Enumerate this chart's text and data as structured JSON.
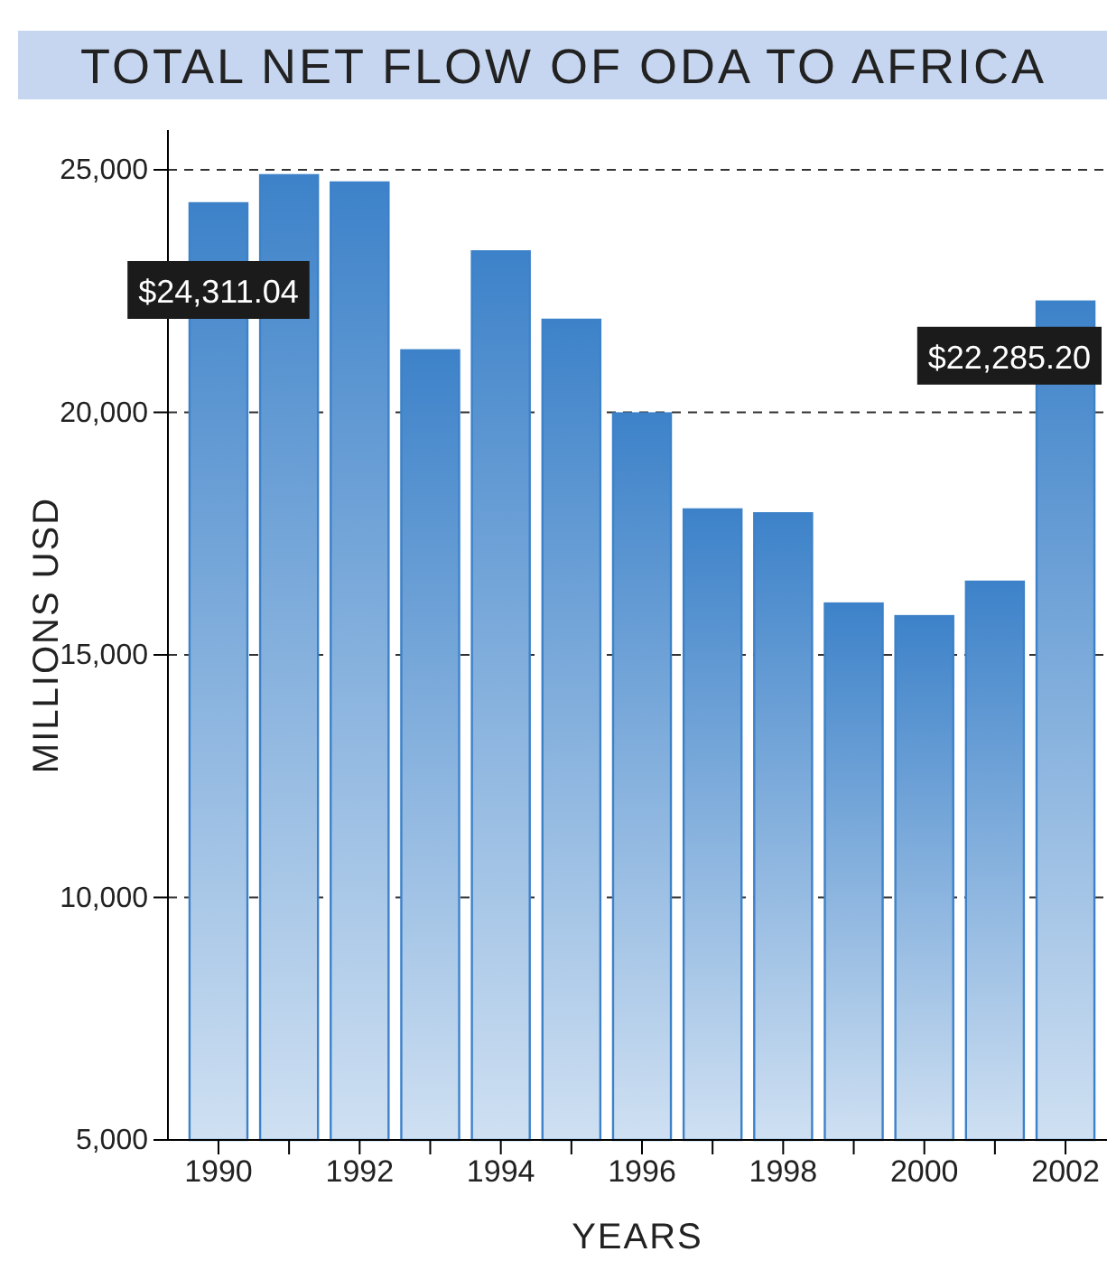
{
  "chart_data": {
    "type": "bar",
    "title": "TOTAL NET FLOW OF ODA TO AFRICA",
    "xlabel": "YEARS",
    "ylabel": "MILLIONS USD",
    "categories": [
      "1990",
      null,
      "1992",
      null,
      "1994",
      null,
      "1996",
      null,
      "1998",
      null,
      "2000",
      null,
      "2002"
    ],
    "values": [
      24311.04,
      24890,
      24740,
      21280,
      23320,
      21910,
      19980,
      18000,
      17920,
      16060,
      15800,
      16510,
      22285.2
    ],
    "value_labels": [
      "$24,311.04",
      null,
      null,
      null,
      null,
      null,
      null,
      null,
      null,
      null,
      null,
      null,
      "$22,285.20"
    ],
    "color": "#3d82c9",
    "ylim": [
      5000,
      25000
    ],
    "yticks": [
      {
        "value": 5000,
        "label": "5,000"
      },
      {
        "value": 10000,
        "label": "10,000"
      },
      {
        "value": 15000,
        "label": "15,000"
      },
      {
        "value": 20000,
        "label": "20,000"
      },
      {
        "value": 25000,
        "label": "25,000"
      }
    ],
    "grid": "y",
    "line_style": "dashed"
  }
}
